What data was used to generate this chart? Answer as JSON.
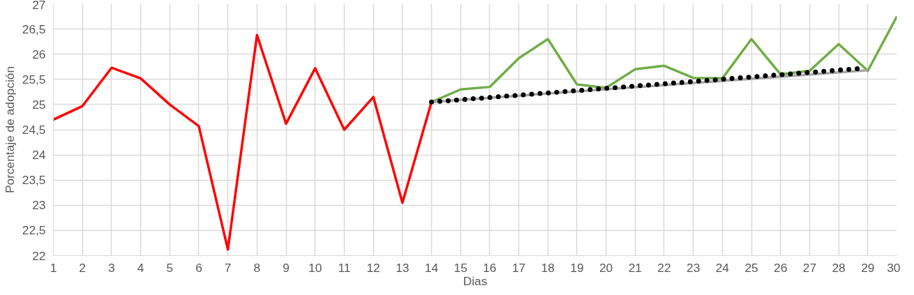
{
  "chart_data": {
    "type": "line",
    "xlabel": "Dias",
    "ylabel": "Porcentaje de adopción",
    "xlim": [
      1,
      30
    ],
    "xticks": [
      1,
      2,
      3,
      4,
      5,
      6,
      7,
      8,
      9,
      10,
      11,
      12,
      13,
      14,
      15,
      16,
      17,
      18,
      19,
      20,
      21,
      22,
      23,
      24,
      25,
      26,
      27,
      28,
      29,
      30
    ],
    "ylim": [
      22,
      27
    ],
    "yticks": [
      22,
      {
        "value": 22.5,
        "label": "22,5"
      },
      23,
      {
        "value": 23.5,
        "label": "23,5"
      },
      24,
      {
        "value": 24.5,
        "label": "24,5"
      },
      25,
      {
        "value": 25.5,
        "label": "25,5"
      },
      26,
      {
        "value": 26.5,
        "label": "26,5"
      },
      27
    ],
    "grid": true,
    "marker": "none",
    "series": [
      {
        "color": "#ff0000",
        "x": [
          1,
          2,
          3,
          4,
          5,
          6,
          7,
          8,
          9,
          10,
          11,
          12,
          13,
          14
        ],
        "values": [
          24.7,
          24.97,
          25.73,
          25.52,
          25.0,
          24.57,
          22.12,
          26.38,
          24.62,
          25.72,
          24.5,
          25.15,
          23.05,
          25.05
        ]
      },
      {
        "color": "#70ad47",
        "x": [
          14,
          15,
          16,
          17,
          18,
          19,
          20,
          21,
          22,
          23,
          24,
          25,
          26,
          27,
          28,
          29,
          30
        ],
        "values": [
          25.05,
          25.3,
          25.35,
          25.92,
          26.3,
          25.4,
          25.33,
          25.7,
          25.77,
          25.53,
          25.52,
          26.3,
          25.6,
          25.67,
          26.2,
          25.67,
          26.75
        ]
      },
      {
        "color": "#a5a5a5",
        "x": [
          14,
          29
        ],
        "values": [
          25.05,
          25.68
        ]
      },
      {
        "color": "#000000",
        "line_style": "dotted",
        "x": [
          14,
          28.8
        ],
        "values": [
          25.05,
          25.72
        ]
      }
    ]
  }
}
